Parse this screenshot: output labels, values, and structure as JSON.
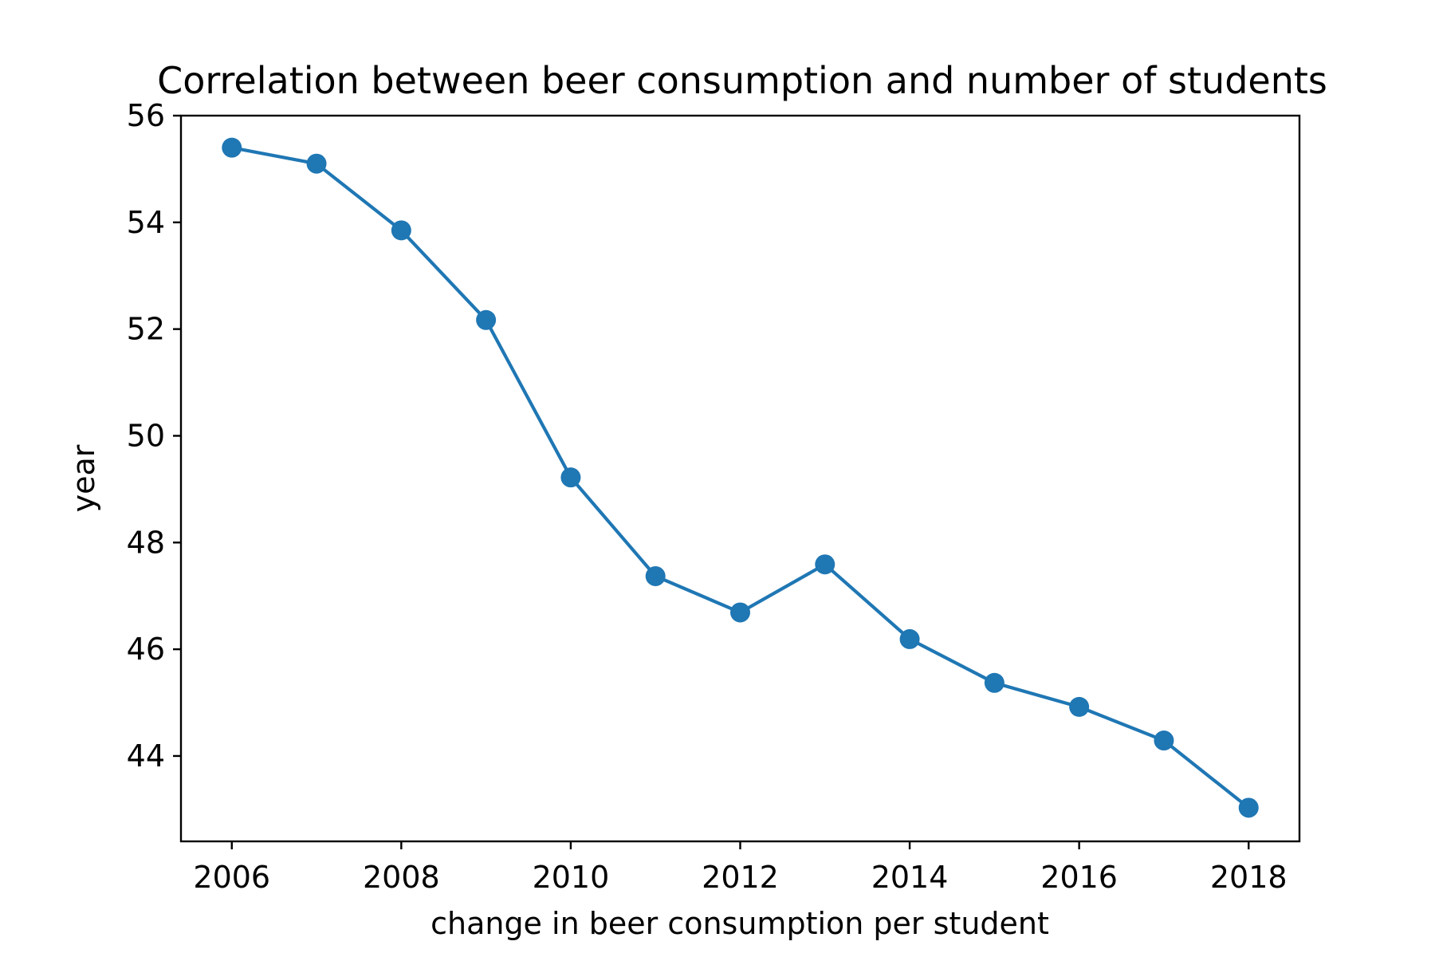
{
  "chart_data": {
    "type": "line",
    "title": "Correlation between beer consumption and number of students",
    "xlabel": "change in beer consumption per student",
    "ylabel": "year",
    "x": [
      2006,
      2007,
      2008,
      2009,
      2010,
      2011,
      2012,
      2013,
      2014,
      2015,
      2016,
      2017,
      2018
    ],
    "series": [
      {
        "name": "",
        "values": [
          55.4,
          55.1,
          53.85,
          52.17,
          49.22,
          47.37,
          46.69,
          47.59,
          46.19,
          45.37,
          44.92,
          44.29,
          43.03
        ],
        "color": "#1f77b4",
        "marker": "circle"
      }
    ],
    "xlim": [
      2005.4,
      2018.6
    ],
    "ylim": [
      42.4,
      56.0
    ],
    "xticks": [
      2006,
      2008,
      2010,
      2012,
      2014,
      2016,
      2018
    ],
    "yticks": [
      44,
      46,
      48,
      50,
      52,
      54,
      56
    ],
    "grid": false,
    "legend": "none"
  }
}
